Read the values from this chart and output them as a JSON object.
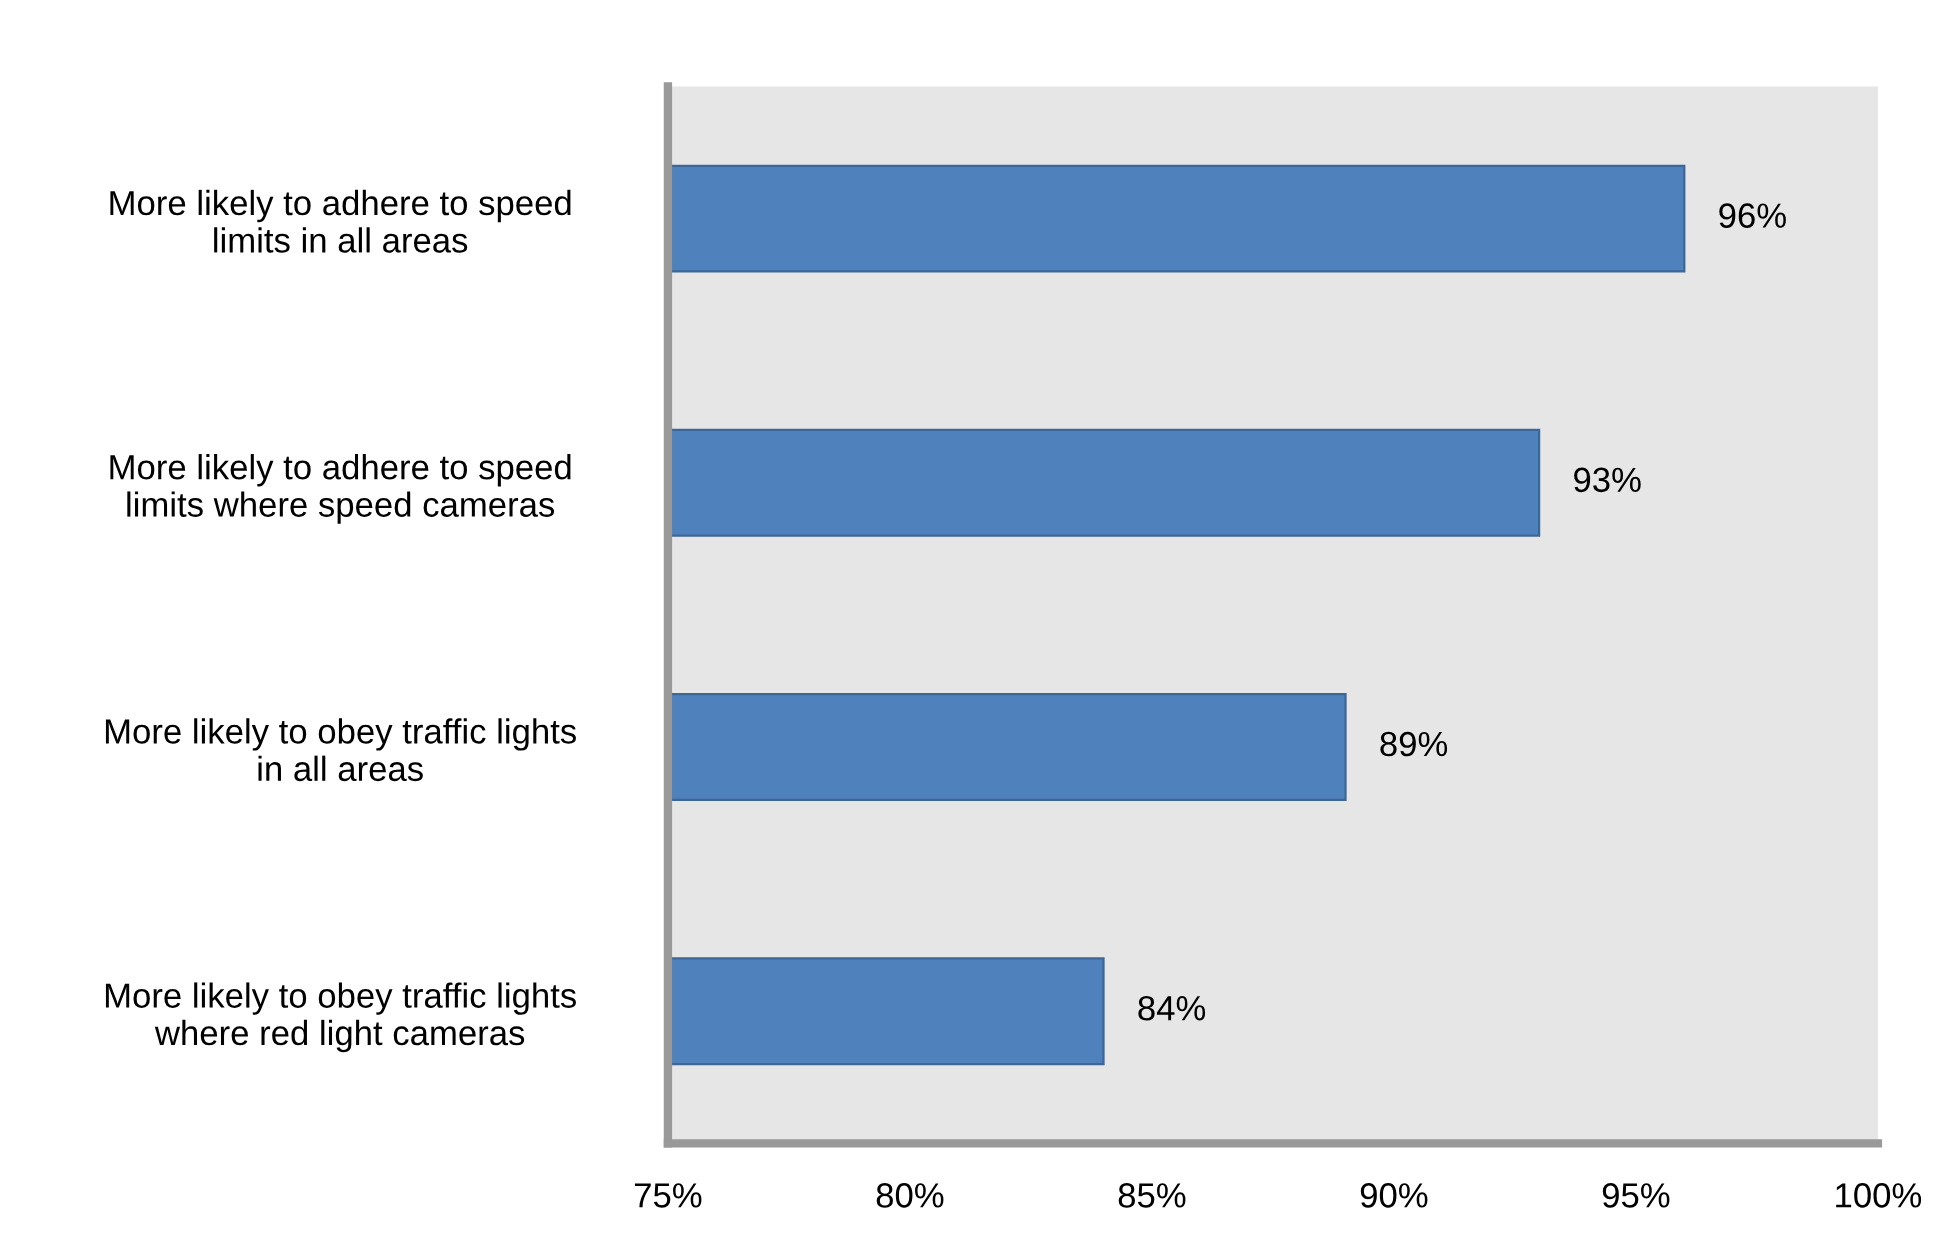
{
  "chart_data": {
    "type": "bar",
    "orientation": "horizontal",
    "categories": [
      "More likely to adhere to speed\nlimits in all areas",
      "More likely to adhere to speed\nlimits where speed cameras",
      "More likely to obey traffic lights\nin all areas",
      "More likely to obey traffic lights\nwhere red light cameras"
    ],
    "values": [
      96,
      93,
      89,
      84
    ],
    "color": "#4f81bd",
    "value_labels": [
      "96%",
      "93%",
      "89%",
      "84%"
    ],
    "xlim": [
      75,
      100
    ],
    "xticks": [
      {
        "value": 75,
        "label": "75%"
      },
      {
        "value": 80,
        "label": "80%"
      },
      {
        "value": 85,
        "label": "85%"
      },
      {
        "value": 90,
        "label": "90%"
      },
      {
        "value": 95,
        "label": "95%"
      },
      {
        "value": 100,
        "label": "100%"
      }
    ],
    "grid": false,
    "legend": false
  }
}
